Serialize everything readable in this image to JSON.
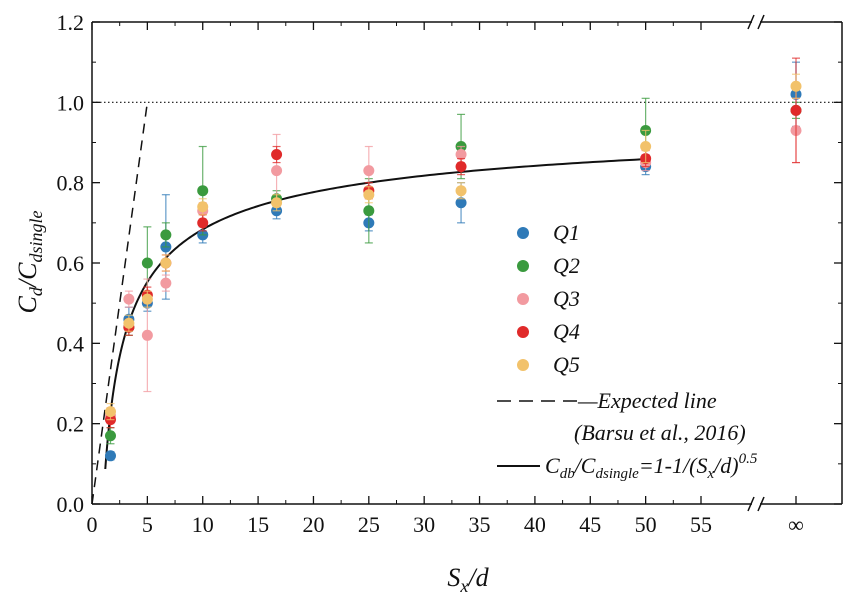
{
  "chart_data": {
    "type": "scatter",
    "title": "",
    "xlabel": {
      "main": "S",
      "sub": "x",
      "tail": "/d"
    },
    "ylabel": {
      "main": "C",
      "sub1": "d",
      "mid": "/C",
      "sub2": "dsingle"
    },
    "xlim": [
      0,
      60
    ],
    "ylim": [
      0,
      1.2
    ],
    "xticks": [
      0,
      5,
      10,
      15,
      20,
      25,
      30,
      35,
      40,
      45,
      50,
      55
    ],
    "yticks": [
      0.0,
      0.2,
      0.4,
      0.6,
      0.8,
      1.0,
      1.2
    ],
    "infinity_label": "∞",
    "reference_line_y": 1.0,
    "grid": false,
    "legend_position": "center-right",
    "series": [
      {
        "name": "Q1",
        "color": "#2f7ab8",
        "points": [
          {
            "x": 1.67,
            "y": 0.12,
            "err": 0.01
          },
          {
            "x": 3.33,
            "y": 0.46,
            "err": 0.03
          },
          {
            "x": 5,
            "y": 0.5,
            "err": 0.02
          },
          {
            "x": 6.67,
            "y": 0.64,
            "err": 0.13
          },
          {
            "x": 10,
            "y": 0.67,
            "err": 0.02
          },
          {
            "x": 16.67,
            "y": 0.73,
            "err": 0.02
          },
          {
            "x": 25,
            "y": 0.7,
            "err": 0.02
          },
          {
            "x": 33.33,
            "y": 0.75,
            "err": 0.05
          },
          {
            "x": 50,
            "y": 0.84,
            "err": 0.02
          },
          {
            "x": "inf",
            "y": 1.02,
            "err": 0.08
          }
        ]
      },
      {
        "name": "Q2",
        "color": "#3a9a3e",
        "points": [
          {
            "x": 1.67,
            "y": 0.17,
            "err": 0.02
          },
          {
            "x": 3.33,
            "y": 0.44,
            "err": 0.02
          },
          {
            "x": 5,
            "y": 0.6,
            "err": 0.09
          },
          {
            "x": 6.67,
            "y": 0.67,
            "err": 0.03
          },
          {
            "x": 10,
            "y": 0.78,
            "err": 0.11
          },
          {
            "x": 16.67,
            "y": 0.76,
            "err": 0.02
          },
          {
            "x": 25,
            "y": 0.73,
            "err": 0.08
          },
          {
            "x": 33.33,
            "y": 0.89,
            "err": 0.08
          },
          {
            "x": 50,
            "y": 0.93,
            "err": 0.08
          },
          {
            "x": "inf",
            "y": 0.98,
            "err": 0.02
          }
        ]
      },
      {
        "name": "Q3",
        "color": "#f29aa0",
        "points": [
          {
            "x": 1.67,
            "y": 0.22,
            "err": 0.02
          },
          {
            "x": 3.33,
            "y": 0.51,
            "err": 0.02
          },
          {
            "x": 5,
            "y": 0.42,
            "err": 0.14
          },
          {
            "x": 6.67,
            "y": 0.55,
            "err": 0.02
          },
          {
            "x": 10,
            "y": 0.73,
            "err": 0.02
          },
          {
            "x": 16.67,
            "y": 0.83,
            "err": 0.09
          },
          {
            "x": 25,
            "y": 0.83,
            "err": 0.06
          },
          {
            "x": 33.33,
            "y": 0.87,
            "err": 0.02
          },
          {
            "x": 50,
            "y": 0.85,
            "err": 0.02
          },
          {
            "x": "inf",
            "y": 0.93,
            "err": 0.08
          }
        ]
      },
      {
        "name": "Q4",
        "color": "#e02a2a",
        "points": [
          {
            "x": 1.67,
            "y": 0.21,
            "err": 0.02
          },
          {
            "x": 3.33,
            "y": 0.44,
            "err": 0.02
          },
          {
            "x": 5,
            "y": 0.52,
            "err": 0.02
          },
          {
            "x": 6.67,
            "y": 0.6,
            "err": 0.02
          },
          {
            "x": 10,
            "y": 0.7,
            "err": 0.02
          },
          {
            "x": 16.67,
            "y": 0.87,
            "err": 0.02
          },
          {
            "x": 25,
            "y": 0.78,
            "err": 0.02
          },
          {
            "x": 33.33,
            "y": 0.84,
            "err": 0.02
          },
          {
            "x": 50,
            "y": 0.86,
            "err": 0.02
          },
          {
            "x": "inf",
            "y": 0.98,
            "err": 0.13
          }
        ]
      },
      {
        "name": "Q5",
        "color": "#f2c26b",
        "points": [
          {
            "x": 1.67,
            "y": 0.23,
            "err": 0.02
          },
          {
            "x": 3.33,
            "y": 0.45,
            "err": 0.02
          },
          {
            "x": 5,
            "y": 0.51,
            "err": 0.02
          },
          {
            "x": 6.67,
            "y": 0.6,
            "err": 0.02
          },
          {
            "x": 10,
            "y": 0.74,
            "err": 0.02
          },
          {
            "x": 16.67,
            "y": 0.75,
            "err": 0.02
          },
          {
            "x": 25,
            "y": 0.77,
            "err": 0.02
          },
          {
            "x": 33.33,
            "y": 0.78,
            "err": 0.02
          },
          {
            "x": 50,
            "y": 0.89,
            "err": 0.04
          },
          {
            "x": "inf",
            "y": 1.04,
            "err": 0.03
          }
        ]
      }
    ],
    "expected_line": {
      "label": "—Expected  line",
      "label2": "(Barsu et al., 2016)",
      "x": [
        0,
        5
      ],
      "y": [
        0,
        1.0
      ]
    },
    "fit_curve": {
      "label": {
        "a": "C",
        "a_sub": "db",
        "b": "/C",
        "b_sub": "dsingle",
        "c": "=1-1/(S",
        "c_sub": "x",
        "d": "/d)",
        "sup": "0.5"
      },
      "formula": "1-1/x^0.5",
      "x_range": [
        1.2,
        50
      ]
    }
  }
}
